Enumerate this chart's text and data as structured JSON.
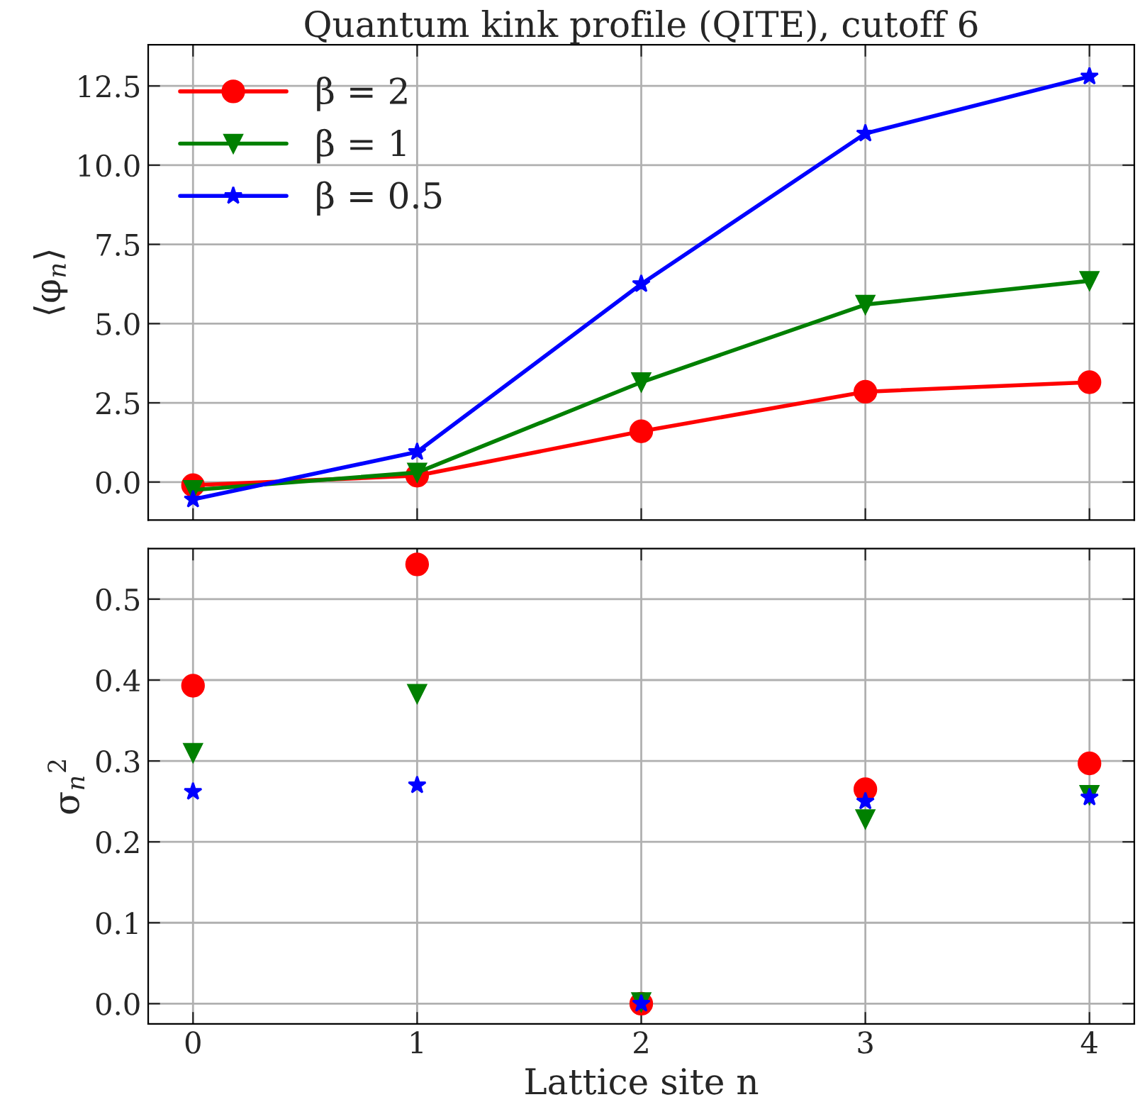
{
  "chart_data": [
    {
      "type": "line",
      "title": "Quantum kink profile (QITE), cutoff 6",
      "ylabel": "⟨φ$_{n}$⟩",
      "x": [
        0,
        1,
        2,
        3,
        4
      ],
      "xlim": [
        -0.2,
        4.2
      ],
      "xticks": [
        0,
        1,
        2,
        3,
        4
      ],
      "ylim": [
        -1.2,
        13.8
      ],
      "yticks": [
        {
          "value": 0,
          "label": "0.0"
        },
        2.5,
        {
          "value": 5,
          "label": "5.0"
        },
        {
          "value": 7.5,
          "label": "7.5"
        },
        {
          "value": 10,
          "label": "10.0"
        },
        12.5
      ],
      "grid": true,
      "legend": "top left",
      "tick_labels": "y",
      "series": [
        {
          "name": "β = 2",
          "color": "#ff0000",
          "marker": "circle",
          "values": [
            -0.1,
            0.2,
            1.6,
            2.85,
            3.15
          ]
        },
        {
          "name": "β = 1",
          "color": "#008000",
          "marker": "triangle",
          "values": [
            -0.25,
            0.3,
            3.15,
            5.6,
            6.35
          ]
        },
        {
          "name": "β = 0.5",
          "color": "#0000ff",
          "marker": "star",
          "values": [
            -0.55,
            0.95,
            6.25,
            11.0,
            12.8
          ]
        }
      ]
    },
    {
      "type": "scatter",
      "xlabel": "Lattice site n",
      "ylabel": "σ$_{n}$$^{2}$",
      "x": [
        0,
        1,
        2,
        3,
        4
      ],
      "xlim": [
        -0.2,
        4.2
      ],
      "xticks": [
        0,
        1,
        2,
        3,
        4
      ],
      "ylim": [
        -0.025,
        0.5625
      ],
      "yticks": [
        {
          "value": 0,
          "label": "0.0"
        },
        0.1,
        0.2,
        0.3,
        0.4,
        0.5
      ],
      "grid": true,
      "series": [
        {
          "color": "#ff0000",
          "marker": "circle",
          "values": [
            0.393,
            0.543,
            0.0,
            0.265,
            0.297
          ]
        },
        {
          "color": "#008000",
          "marker": "triangle",
          "values": [
            0.31,
            0.383,
            0.002,
            0.228,
            0.258
          ]
        },
        {
          "color": "#0000ff",
          "marker": "star",
          "values": [
            0.262,
            0.27,
            0.0,
            0.25,
            0.255
          ]
        }
      ]
    }
  ]
}
